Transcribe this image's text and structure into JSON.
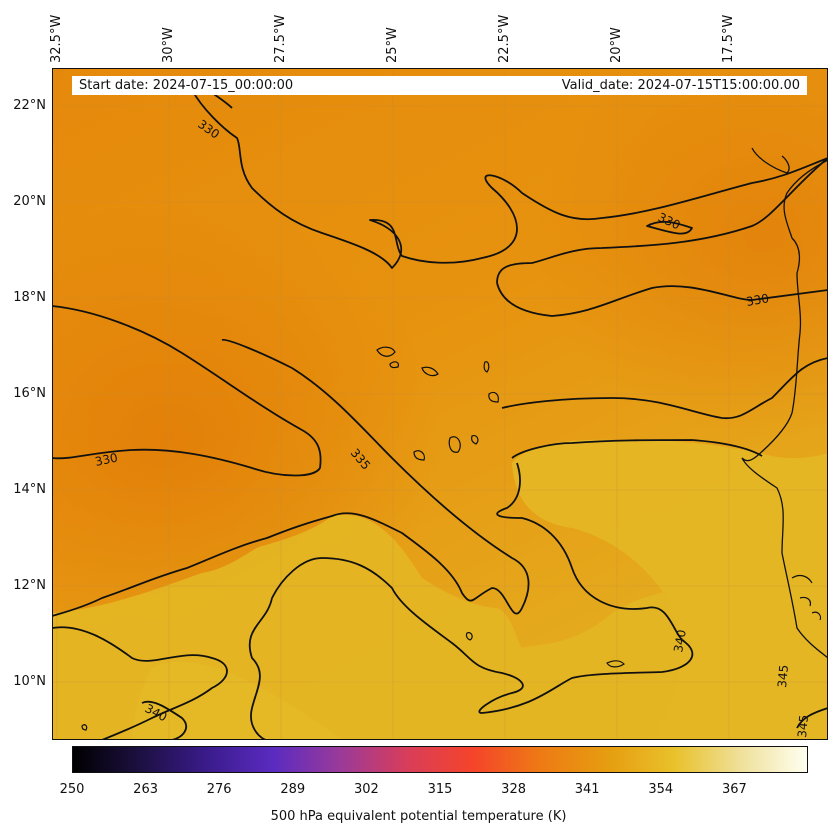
{
  "lon_labels": [
    "32.5°W",
    "30°W",
    "27.5°W",
    "25°W",
    "22.5°W",
    "20°W",
    "17.5°W"
  ],
  "lat_labels": [
    "22°N",
    "20°N",
    "18°N",
    "16°N",
    "14°N",
    "12°N",
    "10°N"
  ],
  "header": {
    "start_date": "Start date: 2024-07-15_00:00:00",
    "valid_date": "Valid_date: 2024-07-15T15:00:00.00"
  },
  "colorbar": {
    "ticks": [
      "250",
      "263",
      "276",
      "289",
      "302",
      "315",
      "328",
      "341",
      "354",
      "367"
    ],
    "label": "500 hPa equivalent potential temperature (K)",
    "colors": [
      "#000000",
      "#1c1040",
      "#3a1b8a",
      "#5a2bc0",
      "#9a3a9a",
      "#d83d5a",
      "#f5442a",
      "#ee7a14",
      "#e69d10",
      "#e9c12a",
      "#efe09a",
      "#fffff0"
    ]
  },
  "contour_labels": [
    "330",
    "330",
    "330",
    "330",
    "335",
    "340",
    "340",
    "345",
    "345"
  ],
  "colors": {
    "map_orange": "#e8900e",
    "map_yellow": "#e5b523",
    "contour": "#111111"
  }
}
